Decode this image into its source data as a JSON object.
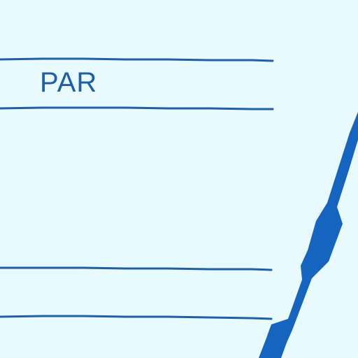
{
  "card": {
    "label": "PAR"
  },
  "colors": {
    "background": "#e8fafd",
    "ink": "#1f5ea8",
    "stripe": "#1565c0"
  }
}
